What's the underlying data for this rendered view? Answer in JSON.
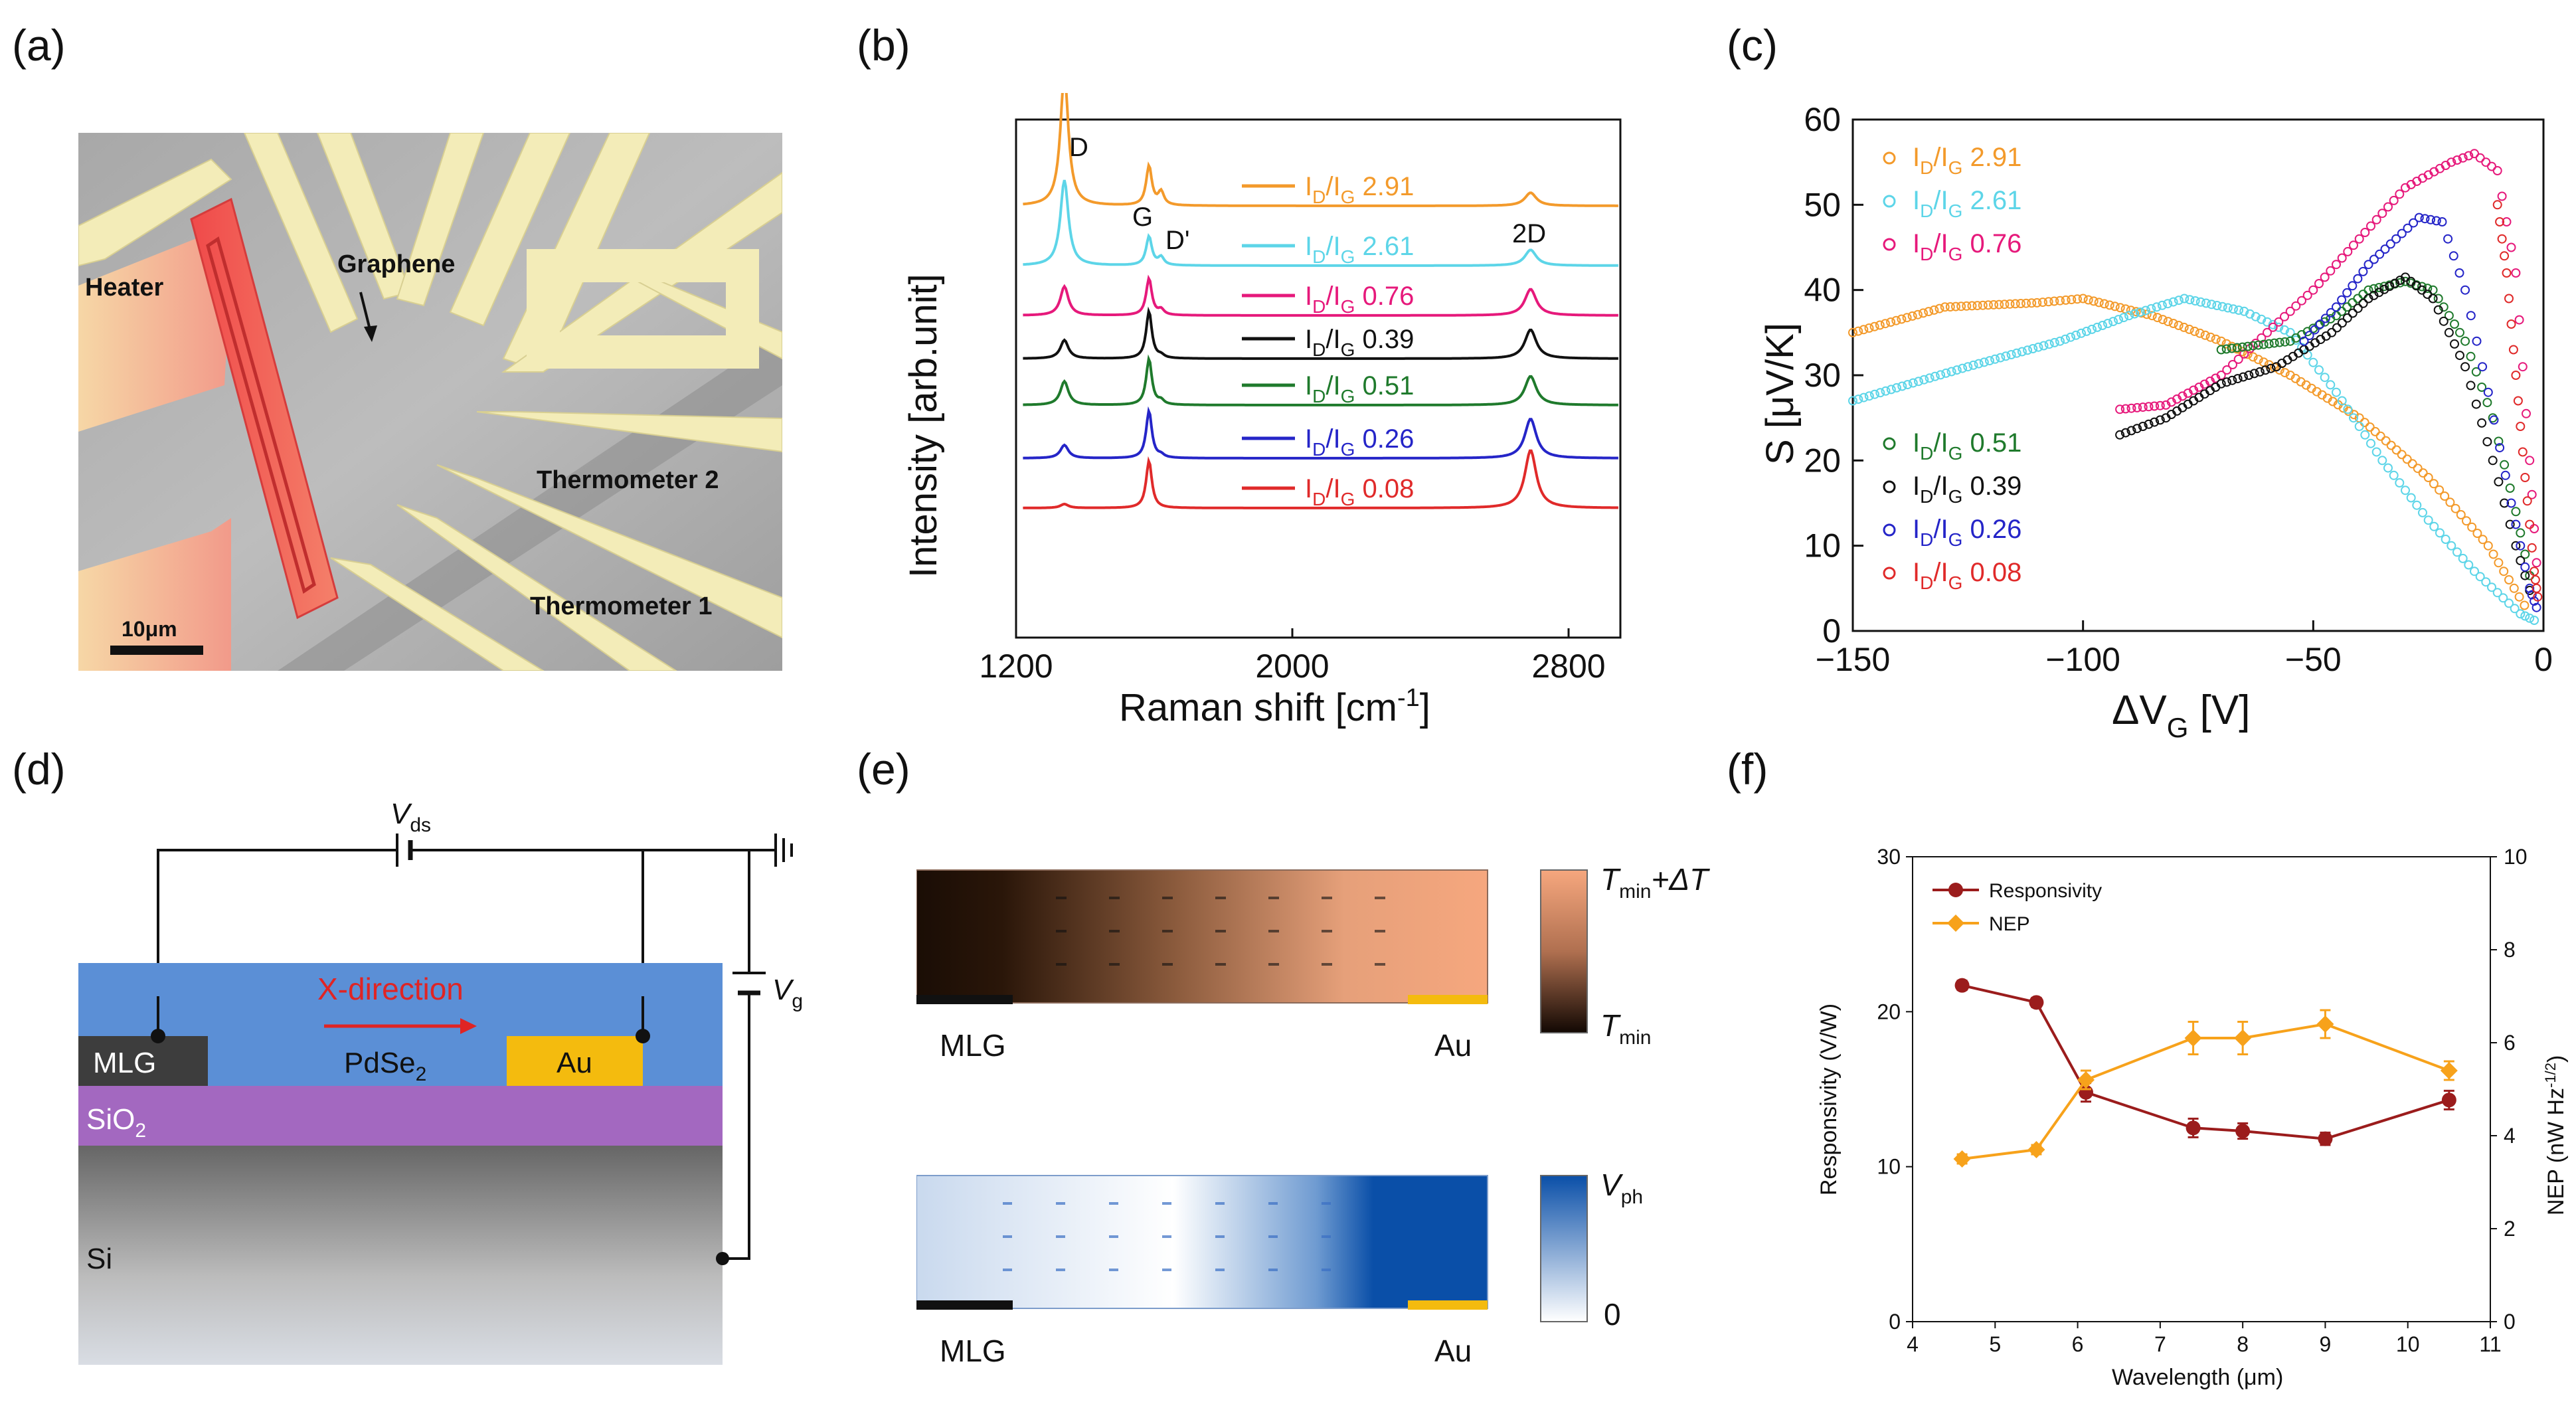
{
  "panels": {
    "a": {
      "letter": "(a)",
      "labels": {
        "heater": "Heater",
        "graphene": "Graphene",
        "thermometer2": "Thermometer 2",
        "thermometer1": "Thermometer 1",
        "scale": "10μm"
      }
    },
    "b": {
      "letter": "(b)",
      "peaks": {
        "d": "D",
        "g": "G",
        "dprime": "D'",
        "twod": "2D"
      }
    },
    "c": {
      "letter": "(c)"
    },
    "d": {
      "letter": "(d)",
      "labels": {
        "vds_base": "V",
        "vds_sub": "ds",
        "vg_base": "V",
        "vg_sub": "g",
        "direction": "X-direction",
        "mlg": "MLG",
        "au": "Au",
        "pdse_base": "PdSe",
        "pdse_sub": "2",
        "sio_base": "SiO",
        "sio_sub": "2",
        "si": "Si"
      }
    },
    "e": {
      "letter": "(e)",
      "labels": {
        "mlg_top": "MLG",
        "au_top": "Au",
        "mlg_bottom": "MLG",
        "au_bottom": "Au",
        "tmin_dt_base": "T",
        "tmin_dt_sub": "min",
        "tmin_dt_suffix": "+ΔT",
        "tmin_base": "T",
        "tmin_sub": "min",
        "vph_base": "V",
        "vph_sub": "ph",
        "zero": "0"
      }
    },
    "f": {
      "letter": "(f)"
    }
  },
  "chart_data": [
    {
      "id": "b",
      "type": "line",
      "title": "",
      "xlabel": "Raman shift [cm-1]",
      "xlabel_base": "Raman shift [cm",
      "xlabel_sup": "-1",
      "xlabel_close": "]",
      "ylabel": "Intensity [arb.unit]",
      "xlim": [
        1200,
        2950
      ],
      "xticks": [
        "1200",
        "2000",
        "2800"
      ],
      "xtick_values": [
        1200,
        2000,
        2800
      ],
      "peak_positions": {
        "D": 1340,
        "G": 1585,
        "D'": 1620,
        "2D": 2690
      },
      "series": [
        {
          "name": "ID/IG 2.91",
          "ratio": "2.91",
          "color": "#f39a2b",
          "D": 1.0,
          "G": 0.3,
          "Dp": 0.1,
          "2D": 0.1,
          "baseline": 0.0
        },
        {
          "name": "ID/IG 2.61",
          "ratio": "2.61",
          "color": "#5dd5e8",
          "D": 0.65,
          "G": 0.22,
          "Dp": 0.06,
          "2D": 0.12,
          "baseline": 0.0
        },
        {
          "name": "ID/IG 0.76",
          "ratio": "0.76",
          "color": "#e6197b",
          "D": 0.22,
          "G": 0.28,
          "Dp": 0.04,
          "2D": 0.2,
          "baseline": 0.0
        },
        {
          "name": "ID/IG 0.39",
          "ratio": "0.39",
          "color": "#111111",
          "D": 0.14,
          "G": 0.36,
          "Dp": 0.02,
          "2D": 0.22,
          "baseline": 0.0
        },
        {
          "name": "ID/IG 0.51",
          "ratio": "0.51",
          "color": "#1f7a2c",
          "D": 0.18,
          "G": 0.35,
          "Dp": 0.03,
          "2D": 0.22,
          "baseline": 0.0
        },
        {
          "name": "ID/IG 0.26",
          "ratio": "0.26",
          "color": "#2525c8",
          "D": 0.1,
          "G": 0.36,
          "Dp": 0.02,
          "2D": 0.3,
          "baseline": 0.0
        },
        {
          "name": "ID/IG 0.08",
          "ratio": "0.08",
          "color": "#e02a2a",
          "D": 0.03,
          "G": 0.36,
          "Dp": 0.0,
          "2D": 0.44,
          "baseline": 0.0
        }
      ]
    },
    {
      "id": "c",
      "type": "scatter",
      "title": "",
      "xlabel": "ΔVG [V]",
      "xlabel_base": "ΔV",
      "xlabel_sub": "G",
      "xlabel_close": " [V]",
      "ylabel": "S [μV/K]",
      "xlim": [
        -150,
        0
      ],
      "ylim": [
        0,
        60
      ],
      "xticks": [
        "−150",
        "−100",
        "−50",
        "0"
      ],
      "xtick_values": [
        -150,
        -100,
        -50,
        0
      ],
      "yticks": [
        "0",
        "10",
        "20",
        "30",
        "40",
        "50",
        "60"
      ],
      "ytick_values": [
        0,
        10,
        20,
        30,
        40,
        50,
        60
      ],
      "series": [
        {
          "name": "ID/IG 2.91",
          "ratio": "2.91",
          "color": "#f39a2b",
          "points": [
            [
              -150,
              35
            ],
            [
              -130,
              38
            ],
            [
              -110,
              38.5
            ],
            [
              -100,
              39
            ],
            [
              -85,
              37
            ],
            [
              -70,
              34
            ],
            [
              -55,
              30
            ],
            [
              -40,
              25
            ],
            [
              -25,
              18
            ],
            [
              -12,
              10
            ],
            [
              -3,
              2
            ]
          ]
        },
        {
          "name": "ID/IG 2.61",
          "ratio": "2.61",
          "color": "#5dd5e8",
          "points": [
            [
              -150,
              27
            ],
            [
              -125,
              31
            ],
            [
              -105,
              34
            ],
            [
              -90,
              37
            ],
            [
              -78,
              39
            ],
            [
              -65,
              37.5
            ],
            [
              -55,
              35
            ],
            [
              -45,
              28
            ],
            [
              -35,
              20
            ],
            [
              -25,
              13
            ],
            [
              -15,
              7
            ],
            [
              -5,
              2
            ],
            [
              -1,
              1
            ]
          ]
        },
        {
          "name": "ID/IG 0.76",
          "ratio": "0.76",
          "color": "#e6197b",
          "points": [
            [
              -92,
              26
            ],
            [
              -82,
              26.5
            ],
            [
              -70,
              30
            ],
            [
              -60,
              35
            ],
            [
              -50,
              40
            ],
            [
              -40,
              46
            ],
            [
              -30,
              52
            ],
            [
              -20,
              55
            ],
            [
              -15,
              56
            ],
            [
              -10,
              54
            ],
            [
              -6,
              42
            ],
            [
              -3,
              20
            ],
            [
              -1,
              4
            ]
          ]
        },
        {
          "name": "ID/IG 0.51",
          "ratio": "0.51",
          "color": "#1f7a2c",
          "points": [
            [
              -70,
              33
            ],
            [
              -55,
              34
            ],
            [
              -45,
              37
            ],
            [
              -38,
              40
            ],
            [
              -30,
              41
            ],
            [
              -24,
              40
            ],
            [
              -17,
              34
            ],
            [
              -11,
              25
            ],
            [
              -6,
              14
            ],
            [
              -2,
              4
            ]
          ]
        },
        {
          "name": "ID/IG 0.39",
          "ratio": "0.39",
          "color": "#111111",
          "points": [
            [
              -92,
              23
            ],
            [
              -82,
              25
            ],
            [
              -70,
              29
            ],
            [
              -58,
              31
            ],
            [
              -46,
              35
            ],
            [
              -38,
              39
            ],
            [
              -30,
              41.5
            ],
            [
              -24,
              39
            ],
            [
              -17,
              31
            ],
            [
              -11,
              20
            ],
            [
              -6,
              10
            ],
            [
              -2,
              3
            ]
          ]
        },
        {
          "name": "ID/IG 0.26",
          "ratio": "0.26",
          "color": "#2525c8",
          "points": [
            [
              -52,
              34
            ],
            [
              -45,
              38
            ],
            [
              -38,
              43
            ],
            [
              -32,
              46
            ],
            [
              -27,
              48.5
            ],
            [
              -22,
              48
            ],
            [
              -17,
              40
            ],
            [
              -12,
              28
            ],
            [
              -7,
              15
            ],
            [
              -3,
              5
            ],
            [
              -1,
              2
            ]
          ]
        },
        {
          "name": "ID/IG 0.08",
          "ratio": "0.08",
          "color": "#e02a2a",
          "points": [
            [
              -10,
              50
            ],
            [
              -8,
              42
            ],
            [
              -6,
              30
            ],
            [
              -4,
              18
            ],
            [
              -2,
              7
            ],
            [
              -1,
              3
            ]
          ]
        }
      ]
    },
    {
      "id": "f",
      "type": "line",
      "title": "",
      "xlabel": "Wavelength (μm)",
      "ylabel": "Responsivity (V/W)",
      "ylabel2": "NEP (nW Hz-1/2)",
      "ylabel2_base": "NEP (nW Hz",
      "ylabel2_sup": "-1/2",
      "ylabel2_close": ")",
      "xlim": [
        4,
        11
      ],
      "ylim": [
        0,
        30
      ],
      "ylim2": [
        0,
        10
      ],
      "xticks": [
        "4",
        "5",
        "6",
        "7",
        "8",
        "9",
        "10",
        "11"
      ],
      "xtick_values": [
        4,
        5,
        6,
        7,
        8,
        9,
        10,
        11
      ],
      "yticks": [
        "0",
        "10",
        "20",
        "30"
      ],
      "ytick_values": [
        0,
        10,
        20,
        30
      ],
      "yticks2": [
        "0",
        "2",
        "4",
        "6",
        "8",
        "10"
      ],
      "ytick2_values": [
        0,
        2,
        4,
        6,
        8,
        10
      ],
      "legend": [
        "Responsivity",
        "NEP"
      ],
      "series": [
        {
          "name": "Responsivity",
          "axis": "left",
          "color": "#9b1c1c",
          "x": [
            4.6,
            5.5,
            6.1,
            7.4,
            8.0,
            9.0,
            10.5
          ],
          "values": [
            21.7,
            20.6,
            14.8,
            12.5,
            12.3,
            11.8,
            14.3
          ],
          "errors": [
            0.3,
            0.3,
            0.6,
            0.6,
            0.5,
            0.4,
            0.6
          ]
        },
        {
          "name": "NEP",
          "axis": "right",
          "color": "#f7a21b",
          "x": [
            4.6,
            5.5,
            6.1,
            7.4,
            8.0,
            9.0,
            10.5
          ],
          "values": [
            3.5,
            3.7,
            5.2,
            6.1,
            6.1,
            6.4,
            5.4
          ],
          "errors": [
            0.1,
            0.1,
            0.2,
            0.35,
            0.35,
            0.3,
            0.2
          ]
        }
      ]
    }
  ],
  "colors": {
    "pdse_blue": "#5b8fd6",
    "sio2_purple": "#a368c0",
    "au_yellow": "#f4bb0e",
    "mlg_dark": "#3d3d3d",
    "arrow_red": "#e02424",
    "thermal_warm": "#f6a77e",
    "photo_blue": "#0a4fa8"
  }
}
